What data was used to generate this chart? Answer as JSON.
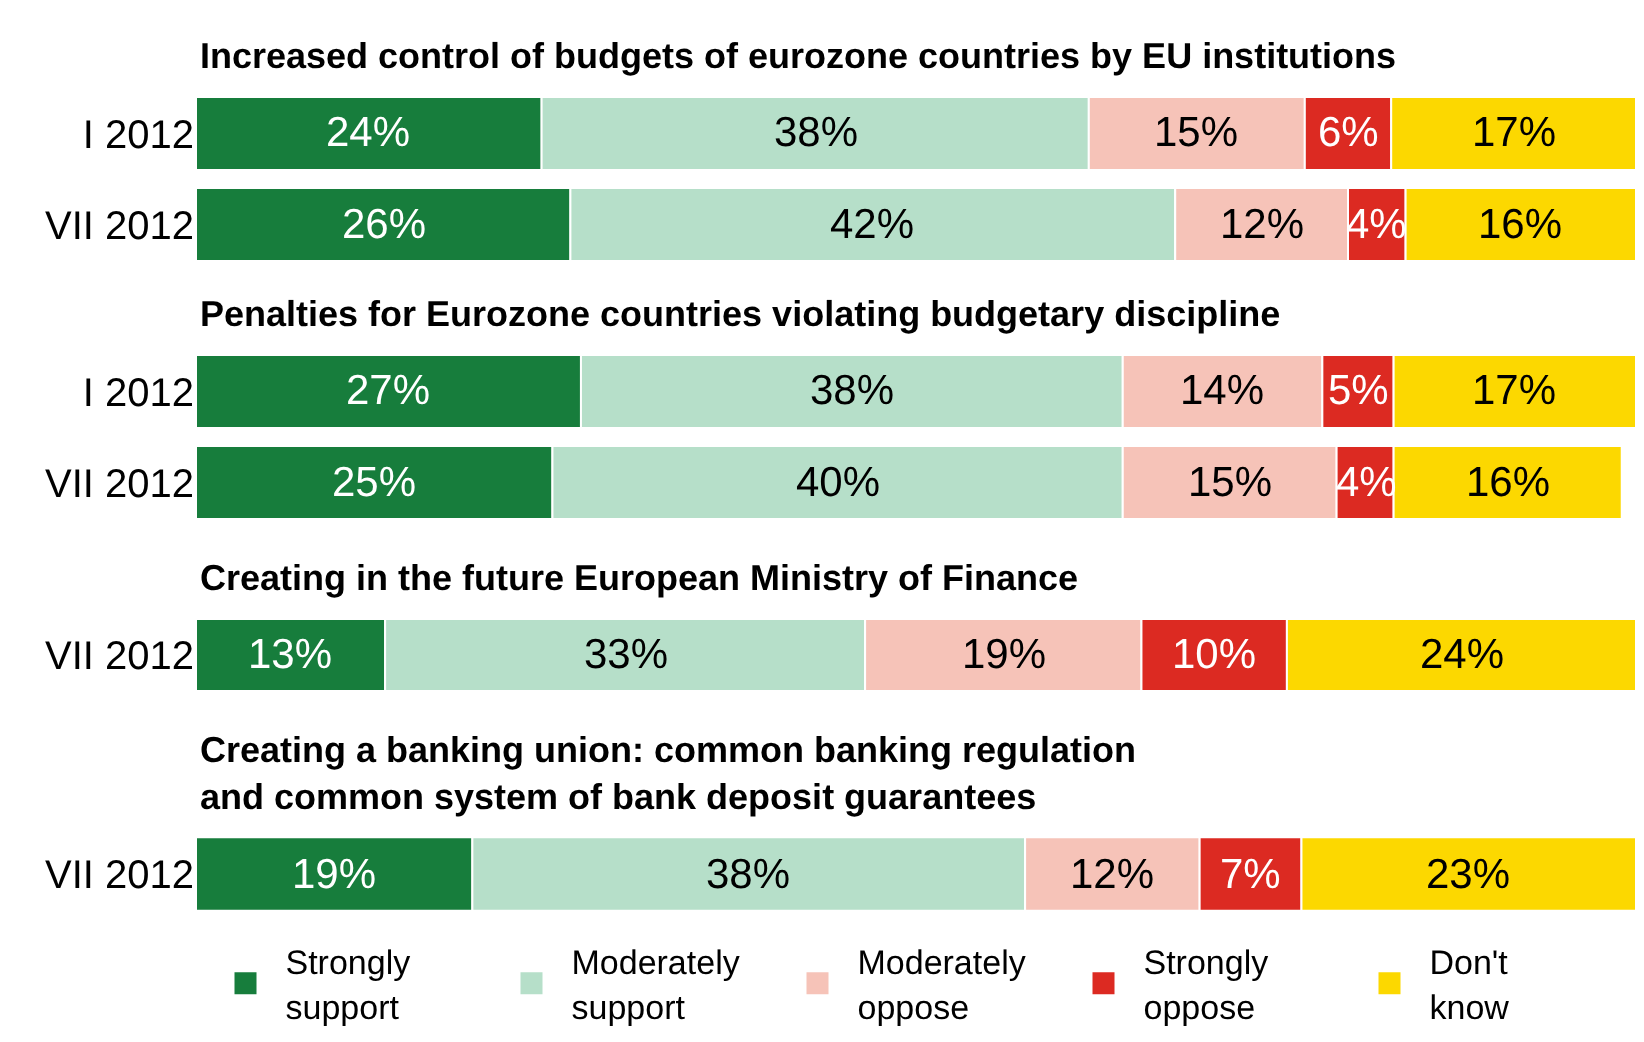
{
  "chart_data": [
    {
      "type": "bar",
      "orientation": "horizontal",
      "stacked": true,
      "title": "Increased control of budgets of eurozone countries by EU institutions",
      "categories": [
        "I 2012",
        "VII 2012"
      ],
      "legend": "bottom",
      "series": [
        {
          "name": "Strongly support",
          "color": "#177d3c",
          "values": [
            24,
            26
          ],
          "value_labels": [
            "24%",
            "26%"
          ]
        },
        {
          "name": "Moderately support",
          "color": "#b6dfc9",
          "values": [
            38,
            42
          ],
          "value_labels": [
            "38%",
            "42%"
          ]
        },
        {
          "name": "Moderately oppose",
          "color": "#f6c3b8",
          "values": [
            15,
            12
          ],
          "value_labels": [
            "15%",
            "12%"
          ]
        },
        {
          "name": "Strongly oppose",
          "color": "#dc2a22",
          "values": [
            6,
            4
          ],
          "value_labels": [
            "6%",
            "4%"
          ]
        },
        {
          "name": "Don't know",
          "color": "#fcd800",
          "values": [
            17,
            16
          ],
          "value_labels": [
            "17%",
            "16%"
          ]
        }
      ]
    },
    {
      "type": "bar",
      "orientation": "horizontal",
      "stacked": true,
      "title": "Penalties for Eurozone countries violating budgetary discipline",
      "categories": [
        "I 2012",
        "VII 2012"
      ],
      "series": [
        {
          "color": "#177d3c",
          "values": [
            27,
            25
          ],
          "value_labels": [
            "27%",
            "25%"
          ]
        },
        {
          "color": "#b6dfc9",
          "values": [
            38,
            40
          ],
          "value_labels": [
            "38%",
            "40%"
          ]
        },
        {
          "color": "#f6c3b8",
          "values": [
            14,
            15
          ],
          "value_labels": [
            "14%",
            "15%"
          ]
        },
        {
          "color": "#dc2a22",
          "values": [
            5,
            4
          ],
          "value_labels": [
            "5%",
            "4%"
          ]
        },
        {
          "color": "#fcd800",
          "values": [
            17,
            16
          ],
          "value_labels": [
            "17%",
            "16%"
          ]
        }
      ]
    },
    {
      "type": "bar",
      "orientation": "horizontal",
      "stacked": true,
      "title": "Creating in the future European Ministry of Finance",
      "categories": [
        "VII 2012"
      ],
      "series": [
        {
          "color": "#177d3c",
          "values": [
            13
          ],
          "value_labels": [
            "13%"
          ]
        },
        {
          "color": "#b6dfc9",
          "values": [
            33
          ],
          "value_labels": [
            "33%"
          ]
        },
        {
          "color": "#f6c3b8",
          "values": [
            19
          ],
          "value_labels": [
            "19%"
          ]
        },
        {
          "color": "#dc2a22",
          "values": [
            10
          ],
          "value_labels": [
            "10%"
          ]
        },
        {
          "color": "#fcd800",
          "values": [
            24
          ],
          "value_labels": [
            "24%"
          ]
        }
      ]
    },
    {
      "type": "bar",
      "orientation": "horizontal",
      "stacked": true,
      "title": "Creating a banking union: common banking regulation\nand common system of bank deposit guarantees",
      "categories": [
        "VII 2012"
      ],
      "series": [
        {
          "color": "#177d3c",
          "values": [
            19
          ],
          "value_labels": [
            "19%"
          ]
        },
        {
          "color": "#b6dfc9",
          "values": [
            38
          ],
          "value_labels": [
            "38%"
          ]
        },
        {
          "color": "#f6c3b8",
          "values": [
            12
          ],
          "value_labels": [
            "12%"
          ]
        },
        {
          "color": "#dc2a22",
          "values": [
            7
          ],
          "value_labels": [
            "7%"
          ]
        },
        {
          "color": "#fcd800",
          "values": [
            23
          ],
          "value_labels": [
            "23%"
          ]
        }
      ]
    }
  ]
}
